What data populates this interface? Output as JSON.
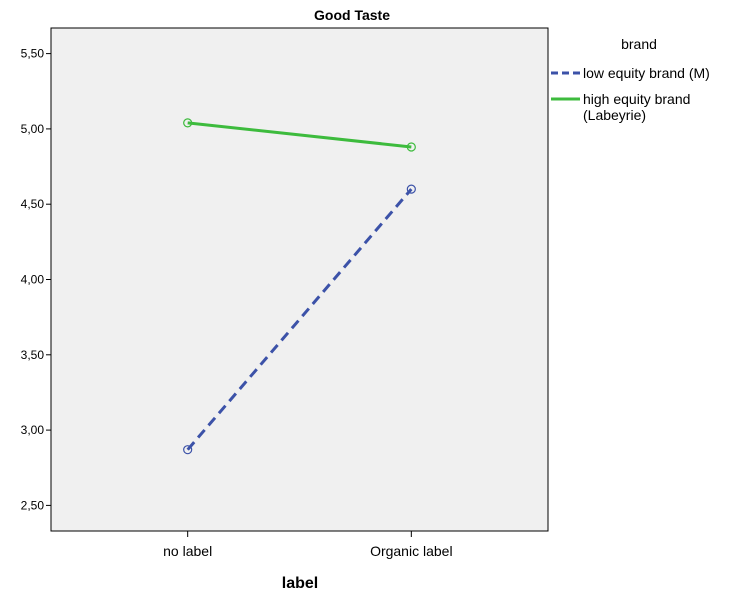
{
  "chart_data": {
    "type": "line",
    "title": "Good Taste",
    "xlabel": "label",
    "ylabel": "",
    "categories": [
      "no label",
      "Organic label"
    ],
    "ylim": [
      2.33,
      5.67
    ],
    "yticks": [
      "2,50",
      "3,00",
      "3,50",
      "4,00",
      "4,50",
      "5,00",
      "5,50"
    ],
    "ytick_values": [
      2.5,
      3.0,
      3.5,
      4.0,
      4.5,
      5.0,
      5.5
    ],
    "grid": false,
    "legend_position": "right",
    "legend_title": "brand",
    "series": [
      {
        "name": "low equity brand (M)",
        "values": [
          2.87,
          4.6
        ],
        "color": "#3c52a8",
        "line_style": "dashed"
      },
      {
        "name": "high equity brand (Labeyrie)",
        "name_lines": [
          "high equity brand",
          "(Labeyrie)"
        ],
        "values": [
          5.04,
          4.88
        ],
        "color": "#3dbb3d",
        "line_style": "solid"
      }
    ],
    "plot_background": "#f0f0f0"
  }
}
